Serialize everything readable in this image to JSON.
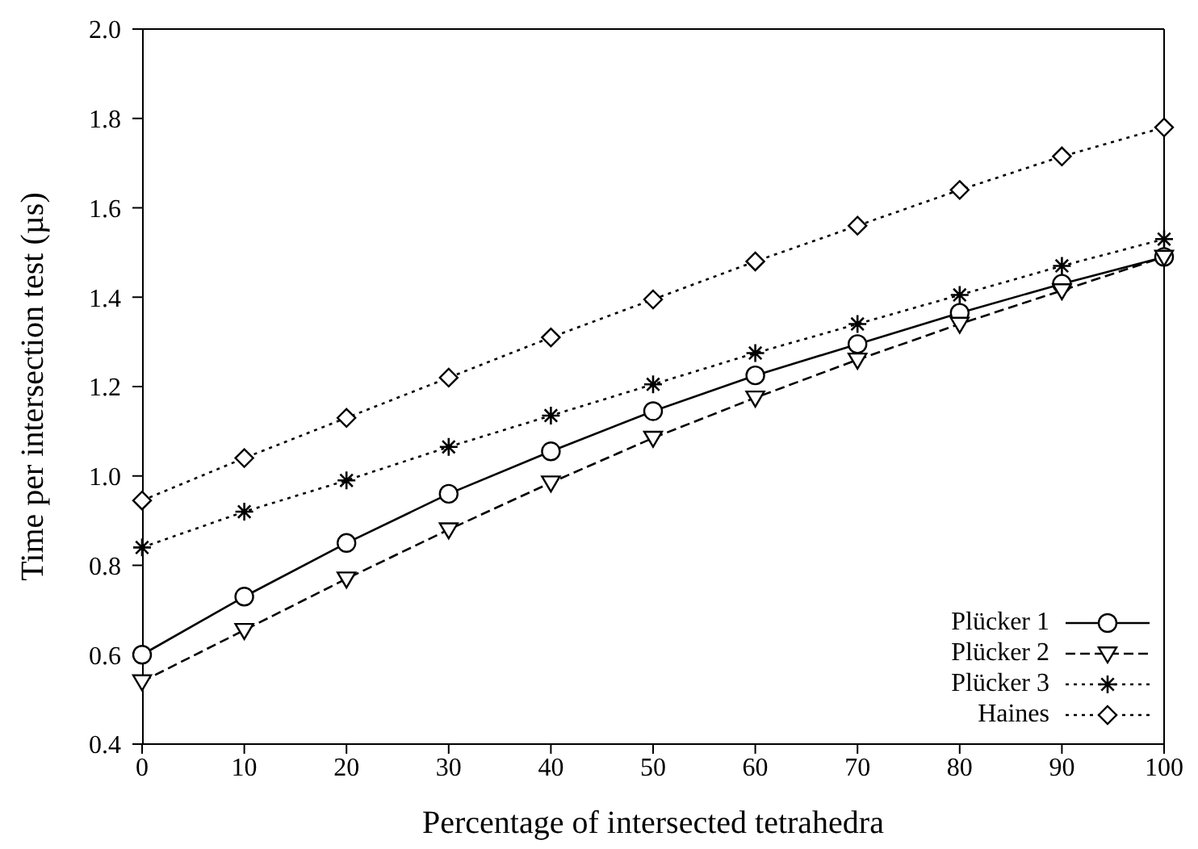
{
  "chart_data": {
    "type": "line",
    "xlabel": "Percentage of intersected tetrahedra",
    "ylabel": "Time per intersection test (µs)",
    "x": [
      0,
      10,
      20,
      30,
      40,
      50,
      60,
      70,
      80,
      90,
      100
    ],
    "xlim": [
      0,
      100
    ],
    "xticks": [
      0,
      10,
      20,
      30,
      40,
      50,
      60,
      70,
      80,
      90,
      100
    ],
    "ylim": [
      0.4,
      2.0
    ],
    "yticks": [
      {
        "value": 0.4,
        "label": "0.4"
      },
      {
        "value": 0.6,
        "label": "0.6"
      },
      {
        "value": 0.8,
        "label": "0.8"
      },
      {
        "value": 1.0,
        "label": "1.0"
      },
      {
        "value": 1.2,
        "label": "1.2"
      },
      {
        "value": 1.4,
        "label": "1.4"
      },
      {
        "value": 1.6,
        "label": "1.6"
      },
      {
        "value": 1.8,
        "label": "1.8"
      },
      {
        "value": 2.0,
        "label": "2.0"
      }
    ],
    "grid": false,
    "legend": "bottom right",
    "series": [
      {
        "name": "Plücker 1",
        "color": "#000000",
        "marker": "circle",
        "line_style": "solid",
        "values": [
          0.6,
          0.73,
          0.85,
          0.96,
          1.055,
          1.145,
          1.225,
          1.295,
          1.365,
          1.43,
          1.49
        ]
      },
      {
        "name": "Plücker 2",
        "color": "#000000",
        "marker": "triangle",
        "line_style": "dashed",
        "values": [
          0.54,
          0.655,
          0.77,
          0.88,
          0.985,
          1.085,
          1.175,
          1.26,
          1.34,
          1.415,
          1.49
        ]
      },
      {
        "name": "Plücker 3",
        "color": "#000000",
        "marker": "cross",
        "line_style": "dotted",
        "values": [
          0.84,
          0.92,
          0.99,
          1.065,
          1.135,
          1.205,
          1.275,
          1.34,
          1.405,
          1.47,
          1.53
        ]
      },
      {
        "name": "Haines",
        "color": "#000000",
        "marker": "diamond",
        "line_style": "dotted",
        "values": [
          0.945,
          1.04,
          1.13,
          1.22,
          1.31,
          1.395,
          1.48,
          1.56,
          1.64,
          1.715,
          1.78
        ]
      }
    ]
  }
}
